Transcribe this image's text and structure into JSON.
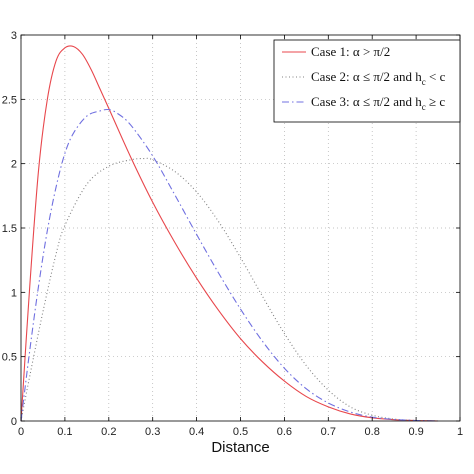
{
  "chart_data": {
    "type": "line",
    "title": "",
    "xlabel": "Distance",
    "ylabel": "",
    "xlim": [
      0,
      1
    ],
    "ylim": [
      0,
      3
    ],
    "xticks": [
      0,
      0.1,
      0.2,
      0.3,
      0.4,
      0.5,
      0.6,
      0.7,
      0.8,
      0.9,
      1
    ],
    "xtick_labels": [
      "0",
      "0.1",
      "0.2",
      "0.3",
      "0.4",
      "0.5",
      "0.6",
      "0.7",
      "0.8",
      "0.9",
      "1"
    ],
    "yticks": [
      0,
      0.5,
      1,
      1.5,
      2,
      2.5,
      3
    ],
    "ytick_labels": [
      "0",
      "0.5",
      "1",
      "1.5",
      "2",
      "2.5",
      "3"
    ],
    "grid": true,
    "legend_position": "top-right",
    "series": [
      {
        "name": "Case 1: α > π/2",
        "color": "#e8474c",
        "style": "solid",
        "x": [
          0,
          0.02,
          0.04,
          0.06,
          0.08,
          0.1,
          0.12,
          0.14,
          0.16,
          0.18,
          0.2,
          0.25,
          0.3,
          0.35,
          0.4,
          0.45,
          0.5,
          0.55,
          0.6,
          0.65,
          0.7,
          0.75,
          0.8,
          0.85,
          0.9,
          0.95
        ],
        "y": [
          0,
          1.05,
          1.95,
          2.5,
          2.8,
          2.9,
          2.91,
          2.85,
          2.73,
          2.58,
          2.43,
          2.05,
          1.7,
          1.39,
          1.11,
          0.86,
          0.64,
          0.46,
          0.31,
          0.19,
          0.11,
          0.055,
          0.025,
          0.01,
          0.003,
          0
        ]
      },
      {
        "name": "Case 2: α ≤ π/2 and h_c < c",
        "color": "#808080",
        "style": "dotted",
        "x": [
          0,
          0.02,
          0.05,
          0.08,
          0.1,
          0.15,
          0.2,
          0.25,
          0.28,
          0.3,
          0.35,
          0.4,
          0.45,
          0.5,
          0.55,
          0.6,
          0.65,
          0.7,
          0.75,
          0.8,
          0.85,
          0.9,
          0.95
        ],
        "y": [
          0,
          0.35,
          0.85,
          1.3,
          1.52,
          1.84,
          1.98,
          2.03,
          2.04,
          2.03,
          1.94,
          1.78,
          1.55,
          1.27,
          0.97,
          0.68,
          0.43,
          0.24,
          0.11,
          0.045,
          0.015,
          0.004,
          0
        ]
      },
      {
        "name": "Case 3: α ≤ π/2 and h_c ≥ c",
        "color": "#7070e0",
        "style": "dash-dot",
        "x": [
          0,
          0.02,
          0.04,
          0.06,
          0.08,
          0.1,
          0.12,
          0.15,
          0.18,
          0.2,
          0.22,
          0.25,
          0.3,
          0.35,
          0.4,
          0.45,
          0.5,
          0.55,
          0.6,
          0.65,
          0.7,
          0.75,
          0.8,
          0.85,
          0.9,
          0.95
        ],
        "y": [
          0,
          0.55,
          1.05,
          1.48,
          1.82,
          2.08,
          2.24,
          2.37,
          2.41,
          2.42,
          2.39,
          2.3,
          2.06,
          1.76,
          1.45,
          1.15,
          0.87,
          0.62,
          0.41,
          0.25,
          0.14,
          0.07,
          0.03,
          0.012,
          0.004,
          0
        ]
      }
    ]
  },
  "legend": {
    "case1": {
      "prefix": "Case 1: ",
      "main": "α > π/2",
      "sub": "",
      "tail": ""
    },
    "case2": {
      "prefix": "Case 2: ",
      "main": "α ≤ π/2 and h",
      "sub": "c",
      "tail": " < c"
    },
    "case3": {
      "prefix": "Case 3: ",
      "main": "α ≤ π/2 and h",
      "sub": "c",
      "tail": " ≥ c"
    }
  }
}
